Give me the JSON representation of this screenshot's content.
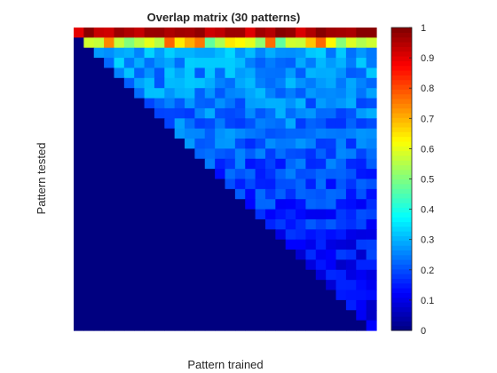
{
  "chart_data": {
    "type": "heatmap",
    "title": "Overlap matrix (30 patterns)",
    "xlabel": "Pattern trained",
    "ylabel": "Pattern tested",
    "n": 30,
    "colormap": "jet",
    "clim": [
      0,
      1
    ],
    "colorbar": {
      "ticks": [
        0,
        0.1,
        0.2,
        0.3,
        0.4,
        0.5,
        0.6,
        0.7,
        0.8,
        0.9,
        1
      ],
      "tick_labels": [
        "0",
        "0.1",
        "0.2",
        "0.3",
        "0.4",
        "0.5",
        "0.6",
        "0.7",
        "0.8",
        "0.9",
        "1"
      ],
      "placement": "right"
    },
    "structure": {
      "row_1": "approximately 0.95 across all trained patterns",
      "row_2": "approximately 0.65 (yellow-cyan band)",
      "rows_3_to_30_upper_triangle": "values approximately 0.1 to 0.3, decreasing with row",
      "lower_triangle": 0
    }
  }
}
